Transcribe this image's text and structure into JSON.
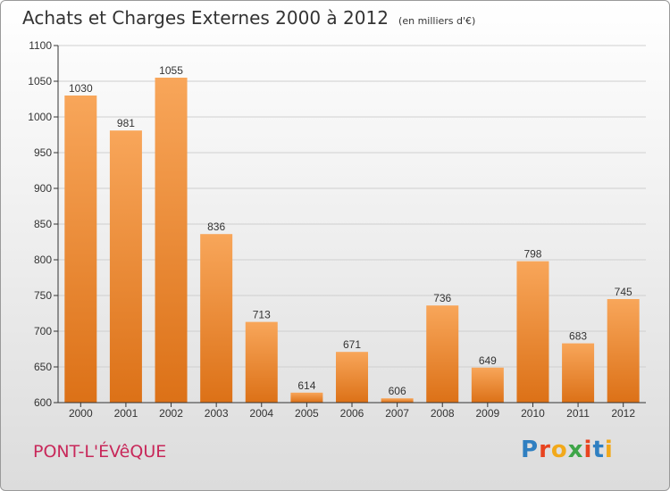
{
  "header": {
    "title": "Achats et Charges Externes 2000 à 2012",
    "unit": "(en milliers d'€)"
  },
  "footer": {
    "location": "PONT-L'ÉVêQUE",
    "brand_letters": [
      "P",
      "r",
      "o",
      "x",
      "i",
      "t",
      "i"
    ],
    "brand_colors": [
      "#2f7fc1",
      "#e8431f",
      "#f2a91a",
      "#3ea548",
      "#e8431f",
      "#2f7fc1",
      "#f2a91a"
    ]
  },
  "colors": {
    "bar_top": "#f8a65a",
    "bar_bottom": "#dc7117",
    "axis": "#333333",
    "grid": "#cfcfcf"
  },
  "chart_data": {
    "type": "bar",
    "title": "Achats et Charges Externes 2000 à 2012",
    "subtitle": "(en milliers d'€)",
    "categories": [
      "2000",
      "2001",
      "2002",
      "2003",
      "2004",
      "2005",
      "2006",
      "2007",
      "2008",
      "2009",
      "2010",
      "2011",
      "2012"
    ],
    "values": [
      1030,
      981,
      1055,
      836,
      713,
      614,
      671,
      606,
      736,
      649,
      798,
      683,
      745
    ],
    "ylim": [
      600,
      1100
    ],
    "yticks": [
      600,
      650,
      700,
      750,
      800,
      850,
      900,
      950,
      1000,
      1050,
      1100
    ],
    "grid": true,
    "xlabel": "",
    "ylabel": ""
  }
}
